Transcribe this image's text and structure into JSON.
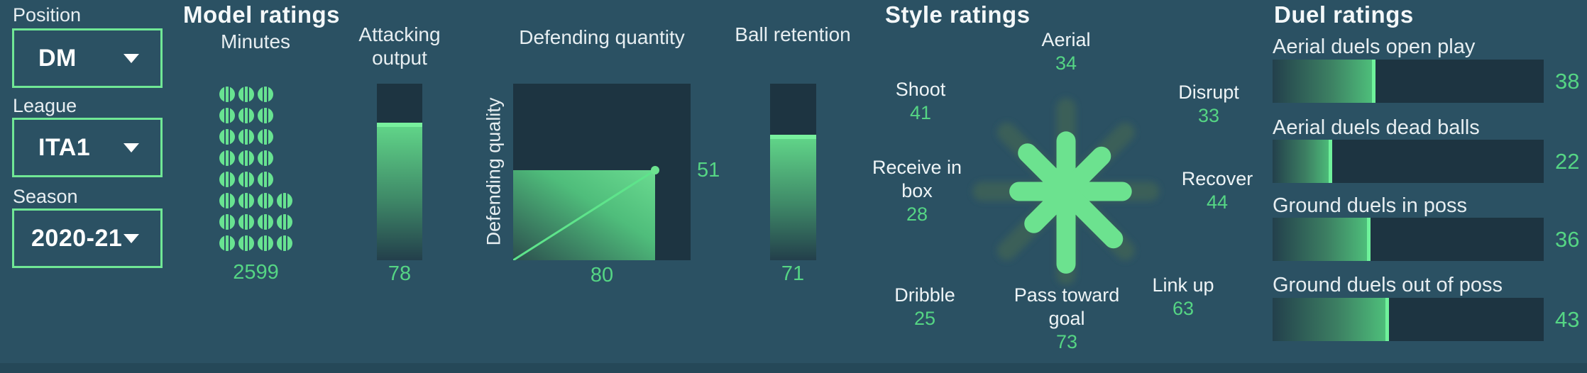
{
  "filters": {
    "position": {
      "label": "Position",
      "value": "DM"
    },
    "league": {
      "label": "League",
      "value": "ITA1"
    },
    "season": {
      "label": "Season",
      "value": "2020-21"
    }
  },
  "sections": {
    "model": {
      "title": "Model ratings",
      "minutes": {
        "label": "Minutes",
        "value": "2599",
        "ball_rows": [
          3,
          3,
          3,
          3,
          3,
          4,
          4,
          4
        ]
      },
      "attacking_output": {
        "label": "Attacking output",
        "value": 78
      },
      "defending": {
        "title": "Defending quantity",
        "ylabel": "Defending quality",
        "x_value": 80,
        "y_value": 51
      },
      "ball_retention": {
        "label": "Ball retention",
        "value": 71
      }
    },
    "style": {
      "title": "Style ratings",
      "items": [
        {
          "label": "Aerial",
          "value": 34
        },
        {
          "label": "Disrupt",
          "value": 33
        },
        {
          "label": "Recover",
          "value": 44
        },
        {
          "label": "Link up",
          "value": 63
        },
        {
          "label": "Pass toward goal",
          "value": 73
        },
        {
          "label": "Dribble",
          "value": 25
        },
        {
          "label": "Receive in box",
          "value": 28
        },
        {
          "label": "Shoot",
          "value": 41
        }
      ]
    },
    "duel": {
      "title": "Duel ratings",
      "items": [
        {
          "label": "Aerial duels open play",
          "value": 38
        },
        {
          "label": "Aerial duels dead balls",
          "value": 22
        },
        {
          "label": "Ground duels in poss",
          "value": 36
        },
        {
          "label": "Ground duels out of poss",
          "value": 43
        }
      ]
    }
  },
  "colors": {
    "background": "#2b5163",
    "panel_dark": "#1d3441",
    "bright_green": "#6ce28f",
    "value_green": "#55d584",
    "border_green": "#70e795",
    "faint_spoke": "#3b5f58",
    "text_white": "#eef4f6"
  }
}
